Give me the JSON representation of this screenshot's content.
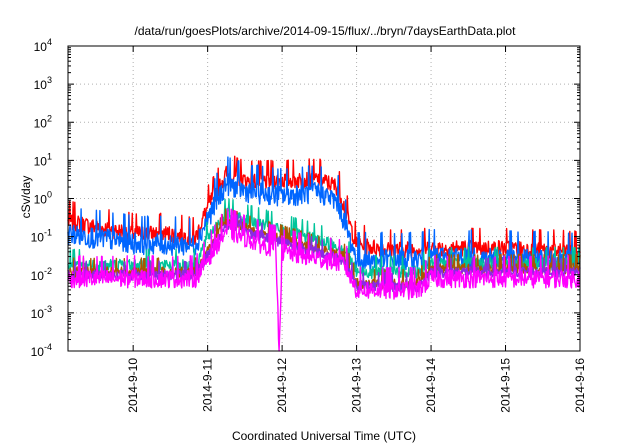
{
  "chart_data": {
    "type": "line",
    "title": "/data/run/goesPlots/archive/2014-09-15/flux/../bryn/7daysEarthData.plot",
    "xlabel": "Coordinated Universal Time (UTC)",
    "ylabel": "cSv/day",
    "yscale": "log",
    "ylim": [
      0.0001,
      10000
    ],
    "y_tick_labels": [
      {
        "base": "10",
        "exp": "-4"
      },
      {
        "base": "10",
        "exp": "-3"
      },
      {
        "base": "10",
        "exp": "-2"
      },
      {
        "base": "10",
        "exp": "-1"
      },
      {
        "base": "10",
        "exp": "0"
      },
      {
        "base": "10",
        "exp": "1"
      },
      {
        "base": "10",
        "exp": "2"
      },
      {
        "base": "10",
        "exp": "3"
      },
      {
        "base": "10",
        "exp": "4"
      }
    ],
    "xlim": [
      "2014-09-09 03:00",
      "2014-09-16 00:00"
    ],
    "x_tick_labels": [
      "2014-9-10",
      "2014-9-11",
      "2014-9-12",
      "2014-9-13",
      "2014-9-14",
      "2014-9-15",
      "2014-9-16"
    ],
    "grid": true,
    "legend": "none",
    "series": [
      {
        "color": "#ff0000",
        "noise": 0.45,
        "points": [
          [
            "2014-09-09 03:00",
            0.25
          ],
          [
            "2014-09-09 12:00",
            0.18
          ],
          [
            "2014-09-10 00:00",
            0.12
          ],
          [
            "2014-09-10 12:00",
            0.12
          ],
          [
            "2014-09-10 20:00",
            0.09
          ],
          [
            "2014-09-11 00:00",
            0.6
          ],
          [
            "2014-09-11 06:00",
            4.5
          ],
          [
            "2014-09-11 12:00",
            3.0
          ],
          [
            "2014-09-11 18:00",
            2.8
          ],
          [
            "2014-09-12 00:00",
            3.0
          ],
          [
            "2014-09-12 12:00",
            3.2
          ],
          [
            "2014-09-12 18:00",
            2.0
          ],
          [
            "2014-09-13 00:00",
            0.06
          ],
          [
            "2014-09-13 12:00",
            0.045
          ],
          [
            "2014-09-14 00:00",
            0.05
          ],
          [
            "2014-09-15 00:00",
            0.05
          ],
          [
            "2014-09-16 00:00",
            0.04
          ]
        ]
      },
      {
        "color": "#0066ff",
        "noise": 0.6,
        "points": [
          [
            "2014-09-09 03:00",
            0.12
          ],
          [
            "2014-09-10 00:00",
            0.07
          ],
          [
            "2014-09-10 20:00",
            0.06
          ],
          [
            "2014-09-11 00:00",
            0.3
          ],
          [
            "2014-09-11 06:00",
            2.5
          ],
          [
            "2014-09-11 12:00",
            1.6
          ],
          [
            "2014-09-12 00:00",
            1.2
          ],
          [
            "2014-09-12 12:00",
            1.5
          ],
          [
            "2014-09-12 18:00",
            0.8
          ],
          [
            "2014-09-13 00:00",
            0.025
          ],
          [
            "2014-09-13 20:00",
            0.025
          ],
          [
            "2014-09-14 00:00",
            0.03
          ],
          [
            "2014-09-16 00:00",
            0.025
          ]
        ]
      },
      {
        "color": "#00c49a",
        "noise": 0.35,
        "points": [
          [
            "2014-09-09 03:00",
            0.018
          ],
          [
            "2014-09-10 20:00",
            0.018
          ],
          [
            "2014-09-11 00:00",
            0.1
          ],
          [
            "2014-09-11 06:00",
            0.4
          ],
          [
            "2014-09-11 18:00",
            0.2
          ],
          [
            "2014-09-12 12:00",
            0.08
          ],
          [
            "2014-09-12 20:00",
            0.05
          ],
          [
            "2014-09-13 00:00",
            0.012
          ],
          [
            "2014-09-13 20:00",
            0.012
          ],
          [
            "2014-09-14 00:00",
            0.02
          ],
          [
            "2014-09-16 00:00",
            0.02
          ]
        ]
      },
      {
        "color": "#aa5500",
        "noise": 0.3,
        "points": [
          [
            "2014-09-09 03:00",
            0.012
          ],
          [
            "2014-09-10 20:00",
            0.012
          ],
          [
            "2014-09-11 06:00",
            0.25
          ],
          [
            "2014-09-11 18:00",
            0.12
          ],
          [
            "2014-09-12 20:00",
            0.03
          ],
          [
            "2014-09-13 00:00",
            0.006
          ],
          [
            "2014-09-13 20:00",
            0.006
          ],
          [
            "2014-09-14 00:00",
            0.015
          ],
          [
            "2014-09-16 00:00",
            0.015
          ]
        ]
      },
      {
        "color": "#8a2be2",
        "noise": 0.3,
        "points": [
          [
            "2014-09-09 03:00",
            0.01
          ],
          [
            "2014-09-10 20:00",
            0.01
          ],
          [
            "2014-09-11 06:00",
            0.2
          ],
          [
            "2014-09-11 18:00",
            0.1
          ],
          [
            "2014-09-12 20:00",
            0.025
          ],
          [
            "2014-09-13 00:00",
            0.005
          ],
          [
            "2014-09-13 20:00",
            0.005
          ],
          [
            "2014-09-14 00:00",
            0.012
          ],
          [
            "2014-09-16 00:00",
            0.012
          ]
        ]
      },
      {
        "color": "#ff00ff",
        "noise": 0.5,
        "points": [
          [
            "2014-09-09 03:00",
            0.008
          ],
          [
            "2014-09-10 20:00",
            0.008
          ],
          [
            "2014-09-11 06:00",
            0.15
          ],
          [
            "2014-09-11 18:00",
            0.06
          ],
          [
            "2014-09-11 22:00",
            0.05
          ],
          [
            "2014-09-11 23:00",
            0.0001
          ],
          [
            "2014-09-12 00:00",
            0.04
          ],
          [
            "2014-09-12 20:00",
            0.02
          ],
          [
            "2014-09-13 00:00",
            0.004
          ],
          [
            "2014-09-13 20:00",
            0.004
          ],
          [
            "2014-09-14 00:00",
            0.008
          ],
          [
            "2014-09-16 00:00",
            0.008
          ]
        ]
      }
    ]
  }
}
